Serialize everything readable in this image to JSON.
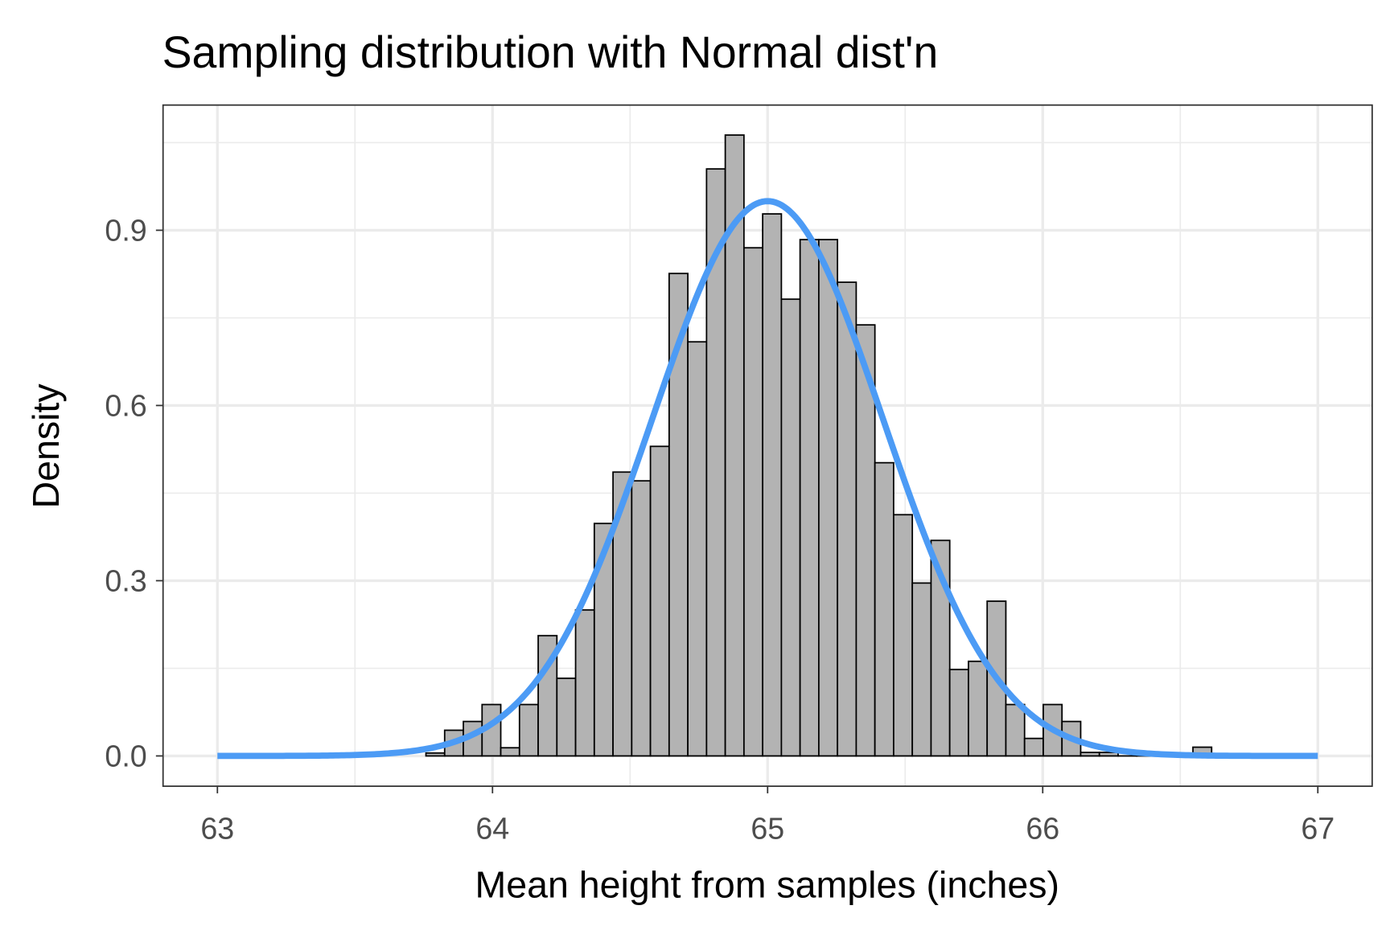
{
  "chart_data": {
    "type": "bar",
    "title": "Sampling distribution with Normal dist'n",
    "xlabel": "Mean height from samples (inches)",
    "ylabel": "Density",
    "xlim": [
      62.8,
      67.1
    ],
    "ylim": [
      -0.055,
      1.115
    ],
    "x_ticks": [
      63,
      64,
      65,
      66,
      67
    ],
    "x_tick_labels": [
      "63",
      "64",
      "65",
      "66",
      "67"
    ],
    "y_ticks": [
      0,
      0.3,
      0.6,
      0.9
    ],
    "y_tick_labels": [
      "0.0",
      "0.3",
      "0.6",
      "0.9"
    ],
    "grid": true,
    "histogram": {
      "bin_start": 63.758,
      "bin_width": 0.068,
      "values": [
        0.005,
        0.044,
        0.059,
        0.088,
        0.014,
        0.088,
        0.206,
        0.133,
        0.25,
        0.398,
        0.486,
        0.471,
        0.53,
        0.826,
        0.709,
        1.005,
        1.063,
        0.87,
        0.928,
        0.782,
        0.884,
        0.884,
        0.811,
        0.738,
        0.502,
        0.413,
        0.296,
        0.369,
        0.148,
        0.162,
        0.265,
        0.088,
        0.03,
        0.088,
        0.059,
        0.006,
        0.006,
        0,
        0,
        0,
        0,
        0.015
      ],
      "fill": "#b3b3b3",
      "stroke": "#000000"
    },
    "normal_curve": {
      "mean": 65,
      "sd": 0.42,
      "x_range": [
        63,
        67
      ],
      "color": "#4c9bf5"
    }
  }
}
